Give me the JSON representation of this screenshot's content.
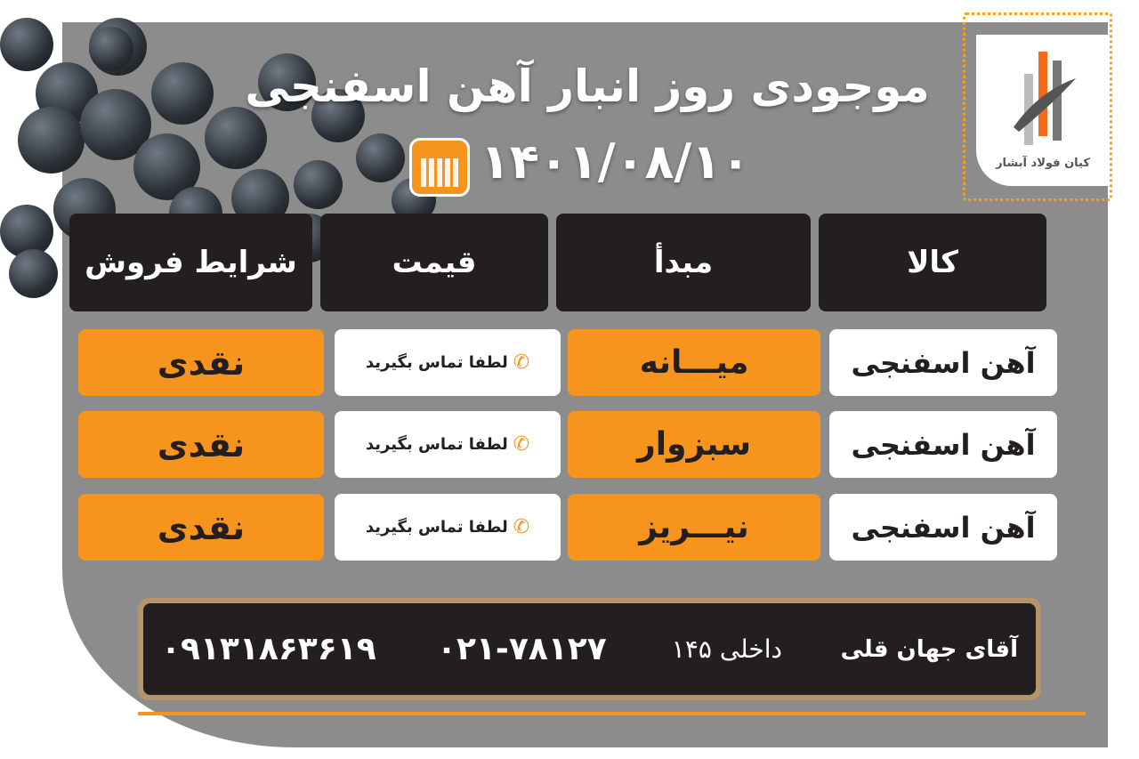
{
  "title": "موجودی روز انبار آهن اسفنجی",
  "date": "۱۴۰۱/۰۸/۱۰",
  "logo": {
    "text": "کیان فولاد آبشار",
    "accent": "#f7941d"
  },
  "headers": [
    "کالا",
    "مبدأ",
    "قیمت",
    "شرایط فروش"
  ],
  "rows": [
    {
      "product": "آهن اسفنجی",
      "origin": "میـــانه",
      "price": "لطفا تماس بگیرید",
      "terms": "نقدی"
    },
    {
      "product": "آهن اسفنجی",
      "origin": "سبزوار",
      "price": "لطفا تماس بگیرید",
      "terms": "نقدی"
    },
    {
      "product": "آهن اسفنجی",
      "origin": "نیـــریز",
      "price": "لطفا تماس بگیرید",
      "terms": "نقدی"
    }
  ],
  "contact": {
    "name": "آقای جهان قلی",
    "extension": "داخلی ۱۴۵",
    "landline": "۰۲۱-۷۸۱۲۷",
    "mobile": "۰۹۱۳۱۸۶۳۶۱۹"
  },
  "colors": {
    "orange": "#f7941d",
    "dark": "#231f20",
    "panel": "#8c8c8c"
  }
}
